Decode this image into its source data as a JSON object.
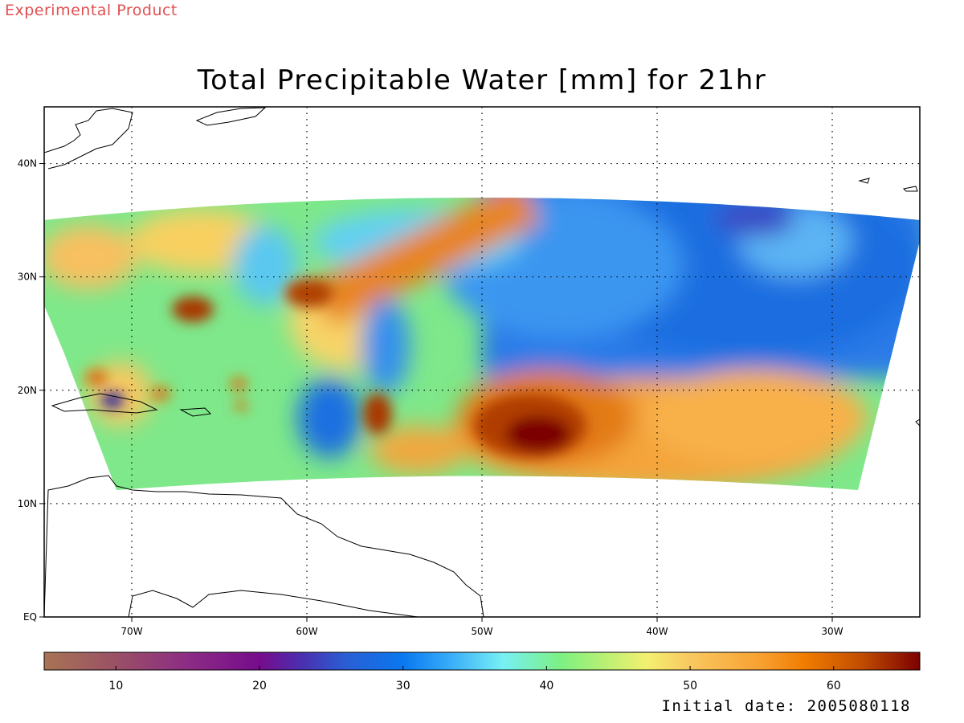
{
  "banner": "Experimental Product",
  "title": "Total Precipitable Water [mm] for 21hr",
  "initial_date": "Initial date: 2005080118",
  "map": {
    "lon_range": [
      -75,
      -25
    ],
    "lat_range": [
      0,
      45
    ],
    "lon_ticks": [
      {
        "lon": -70,
        "label": "70W"
      },
      {
        "lon": -60,
        "label": "60W"
      },
      {
        "lon": -50,
        "label": "50W"
      },
      {
        "lon": -40,
        "label": "40W"
      },
      {
        "lon": -30,
        "label": "30W"
      }
    ],
    "lat_ticks": [
      {
        "lat": 0,
        "label": "EQ"
      },
      {
        "lat": 10,
        "label": "10N"
      },
      {
        "lat": 20,
        "label": "20N"
      },
      {
        "lat": 30,
        "label": "30N"
      },
      {
        "lat": 40,
        "label": "40N"
      }
    ],
    "grid": "dotted"
  },
  "colorbar": {
    "range": [
      5,
      66
    ],
    "ticks": [
      {
        "value": 10,
        "label": "10"
      },
      {
        "value": 20,
        "label": "20"
      },
      {
        "value": 30,
        "label": "30"
      },
      {
        "value": 40,
        "label": "40"
      },
      {
        "value": 50,
        "label": "50"
      },
      {
        "value": 60,
        "label": "60"
      }
    ],
    "stops": [
      {
        "v": 5,
        "c": "#a87454"
      },
      {
        "v": 10,
        "c": "#9a5066"
      },
      {
        "v": 15,
        "c": "#8c2c84"
      },
      {
        "v": 20,
        "c": "#760c8c"
      },
      {
        "v": 23,
        "c": "#4a30b0"
      },
      {
        "v": 26,
        "c": "#2a5ed4"
      },
      {
        "v": 30,
        "c": "#0a78f0"
      },
      {
        "v": 33,
        "c": "#34a8f8"
      },
      {
        "v": 37,
        "c": "#78f0f4"
      },
      {
        "v": 41,
        "c": "#7cf082"
      },
      {
        "v": 44,
        "c": "#b8f074"
      },
      {
        "v": 47,
        "c": "#f4f070"
      },
      {
        "v": 50,
        "c": "#f8c860"
      },
      {
        "v": 55,
        "c": "#f8a030"
      },
      {
        "v": 58,
        "c": "#f07c00"
      },
      {
        "v": 62,
        "c": "#c04c00"
      },
      {
        "v": 66,
        "c": "#7c0000"
      }
    ]
  },
  "features": {
    "storm_center": {
      "lon": -47,
      "lat": 16
    },
    "dry_area": {
      "lon": -35,
      "lat": 34
    }
  }
}
